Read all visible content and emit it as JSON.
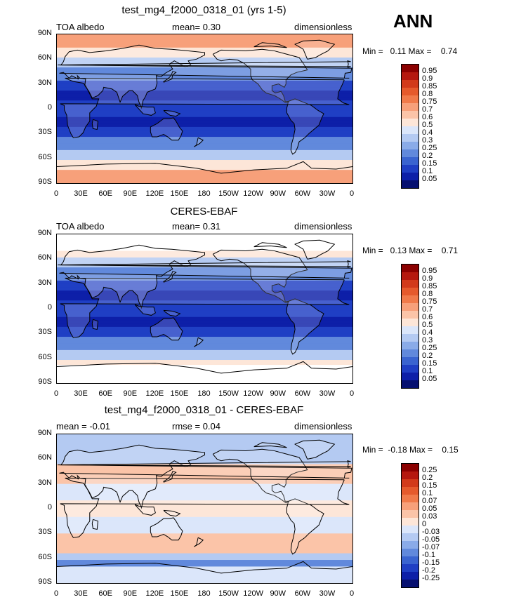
{
  "season": "ANN",
  "y_ticks": [
    "90N",
    "60N",
    "30N",
    "0",
    "30S",
    "60S",
    "90S"
  ],
  "x_ticks": [
    "0",
    "30E",
    "60E",
    "90E",
    "120E",
    "150E",
    "180",
    "150W",
    "120W",
    "90W",
    "60W",
    "30W",
    "0"
  ],
  "panels": [
    {
      "title": "test_mg4_f2000_0318_01 (yrs 1-5)",
      "left_label": "TOA albedo",
      "center_label": "mean=    0.30",
      "right_label": "dimensionless",
      "minmax": "Min =   0.11 Max =    0.74",
      "colorbar_labels": [
        "0.95",
        "0.9",
        "0.85",
        "0.8",
        "0.75",
        "0.7",
        "0.6",
        "0.5",
        "0.4",
        "0.3",
        "0.25",
        "0.2",
        "0.15",
        "0.1",
        "0.05"
      ],
      "colorbar_colors": [
        "#8b0000",
        "#b5180f",
        "#d23a1a",
        "#e55a2c",
        "#f07a4a",
        "#f7a07a",
        "#fbc4a8",
        "#fde6d8",
        "#dbe6fa",
        "#b4caf2",
        "#8aabe8",
        "#6189dc",
        "#3a64d0",
        "#1f3fc4",
        "#0d1fa8",
        "#061070"
      ]
    },
    {
      "title": "CERES-EBAF",
      "left_label": "TOA albedo",
      "center_label": "mean=    0.31",
      "right_label": "dimensionless",
      "minmax": "Min =   0.13 Max =    0.71",
      "colorbar_labels": [
        "0.95",
        "0.9",
        "0.85",
        "0.8",
        "0.75",
        "0.7",
        "0.6",
        "0.5",
        "0.4",
        "0.3",
        "0.25",
        "0.2",
        "0.15",
        "0.1",
        "0.05"
      ],
      "colorbar_colors": [
        "#8b0000",
        "#b5180f",
        "#d23a1a",
        "#e55a2c",
        "#f07a4a",
        "#f7a07a",
        "#fbc4a8",
        "#fde6d8",
        "#dbe6fa",
        "#b4caf2",
        "#8aabe8",
        "#6189dc",
        "#3a64d0",
        "#1f3fc4",
        "#0d1fa8",
        "#061070"
      ]
    },
    {
      "title": "test_mg4_f2000_0318_01 - CERES-EBAF",
      "left_label": "mean =   -0.01",
      "center_label": "rmse =    0.04",
      "right_label": "dimensionless",
      "minmax": "Min =  -0.18 Max =    0.15",
      "colorbar_labels": [
        "0.25",
        "0.2",
        "0.15",
        "0.1",
        "0.07",
        "0.05",
        "0.03",
        "0",
        "-0.03",
        "-0.05",
        "-0.07",
        "-0.1",
        "-0.15",
        "-0.2",
        "-0.25"
      ],
      "colorbar_colors": [
        "#8b0000",
        "#b5180f",
        "#d23a1a",
        "#e55a2c",
        "#f07a4a",
        "#f7a07a",
        "#fbc4a8",
        "#fde6d8",
        "#dbe6fa",
        "#b4caf2",
        "#8aabe8",
        "#6189dc",
        "#3a64d0",
        "#1f3fc4",
        "#0d1fa8",
        "#061070"
      ]
    }
  ]
}
